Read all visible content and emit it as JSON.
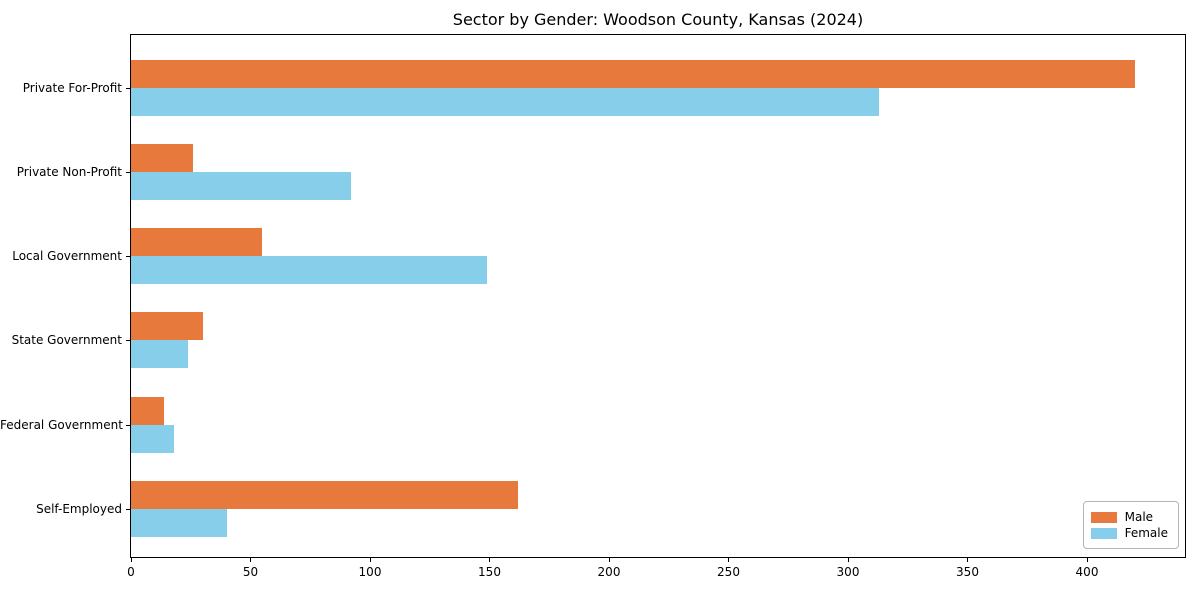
{
  "chart_data": {
    "type": "bar",
    "orientation": "horizontal",
    "title": "Sector by Gender: Woodson County, Kansas (2024)",
    "categories": [
      "Private For-Profit",
      "Private Non-Profit",
      "Local Government",
      "State Government",
      "Federal Government",
      "Self-Employed"
    ],
    "series": [
      {
        "name": "Male",
        "color": "#e8793d",
        "values": [
          420,
          26,
          55,
          30,
          14,
          162
        ]
      },
      {
        "name": "Female",
        "color": "#87ceeb",
        "values": [
          313,
          92,
          149,
          24,
          18,
          40
        ]
      }
    ],
    "xlabel": "",
    "ylabel": "",
    "xlim": [
      0,
      441
    ],
    "xticks": [
      0,
      50,
      100,
      150,
      200,
      250,
      300,
      350,
      400
    ],
    "grid": false,
    "legend_position": "lower right",
    "axis_color": "#000000",
    "background_color": "#ffffff"
  }
}
